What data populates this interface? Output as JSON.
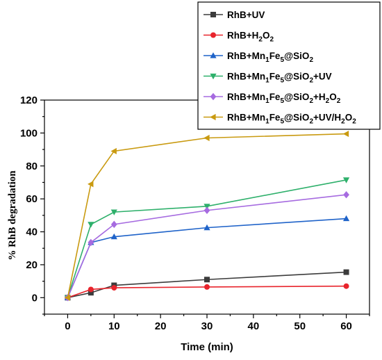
{
  "chart_data": {
    "type": "line",
    "xlabel": "Time (min)",
    "ylabel": "% RhB degradation",
    "xlim": [
      -5,
      65
    ],
    "ylim": [
      -10,
      120
    ],
    "xticks": [
      0,
      10,
      20,
      30,
      40,
      50,
      60
    ],
    "yticks": [
      0,
      20,
      40,
      60,
      80,
      100,
      120
    ],
    "grid": false,
    "legend_position": "top-right",
    "series": [
      {
        "name": "RhB+UV",
        "legend": [
          {
            "t": "RhB+UV"
          }
        ],
        "color": "#3c3c3c",
        "marker": "square",
        "x": [
          0,
          5,
          10,
          30,
          60
        ],
        "y": [
          0,
          3,
          7.5,
          11,
          15.5
        ]
      },
      {
        "name": "RhB+H2O2",
        "legend": [
          {
            "t": "RhB+H"
          },
          {
            "t": "2",
            "sub": true
          },
          {
            "t": "O"
          },
          {
            "t": "2",
            "sub": true
          }
        ],
        "color": "#e8242c",
        "marker": "circle",
        "x": [
          0,
          5,
          10,
          30,
          60
        ],
        "y": [
          0,
          5,
          6,
          6.5,
          7
        ]
      },
      {
        "name": "RhB+Mn1Fe5@SiO2",
        "legend": [
          {
            "t": "RhB+Mn"
          },
          {
            "t": "1",
            "sub": true
          },
          {
            "t": "Fe"
          },
          {
            "t": "5",
            "sub": true
          },
          {
            "t": "@SiO"
          },
          {
            "t": "2",
            "sub": true
          }
        ],
        "color": "#1f63c9",
        "marker": "triangle-up",
        "x": [
          0,
          5,
          10,
          30,
          60
        ],
        "y": [
          0,
          33.5,
          37,
          42.5,
          48
        ]
      },
      {
        "name": "RhB+Mn1Fe5@SiO2+UV",
        "legend": [
          {
            "t": "RhB+Mn"
          },
          {
            "t": "1",
            "sub": true
          },
          {
            "t": "Fe"
          },
          {
            "t": "5",
            "sub": true
          },
          {
            "t": "@SiO"
          },
          {
            "t": "2",
            "sub": true
          },
          {
            "t": "+UV"
          }
        ],
        "color": "#2eb06b",
        "marker": "triangle-down",
        "x": [
          0,
          5,
          10,
          30,
          60
        ],
        "y": [
          0,
          44.5,
          52,
          55.5,
          71.5
        ]
      },
      {
        "name": "RhB+Mn1Fe5@SiO2+H2O2",
        "legend": [
          {
            "t": "RhB+Mn"
          },
          {
            "t": "1",
            "sub": true
          },
          {
            "t": "Fe"
          },
          {
            "t": "5",
            "sub": true
          },
          {
            "t": "@SiO"
          },
          {
            "t": "2",
            "sub": true
          },
          {
            "t": "+H"
          },
          {
            "t": "2",
            "sub": true
          },
          {
            "t": "O"
          },
          {
            "t": "2",
            "sub": true
          }
        ],
        "color": "#a66be0",
        "marker": "diamond",
        "x": [
          0,
          5,
          10,
          30,
          60
        ],
        "y": [
          0,
          33.5,
          44.5,
          53,
          62.5
        ]
      },
      {
        "name": "RhB+Mn1Fe5@SiO2+UV/H2O2",
        "legend": [
          {
            "t": "RhB+Mn"
          },
          {
            "t": "1",
            "sub": true
          },
          {
            "t": "Fe"
          },
          {
            "t": "5",
            "sub": true
          },
          {
            "t": "@SiO"
          },
          {
            "t": "2",
            "sub": true
          },
          {
            "t": "+UV/H"
          },
          {
            "t": "2",
            "sub": true
          },
          {
            "t": "O"
          },
          {
            "t": "2",
            "sub": true
          }
        ],
        "color": "#c99a10",
        "marker": "triangle-left",
        "x": [
          0,
          5,
          10,
          30,
          60
        ],
        "y": [
          0,
          69,
          89,
          97,
          99.5
        ]
      }
    ]
  }
}
